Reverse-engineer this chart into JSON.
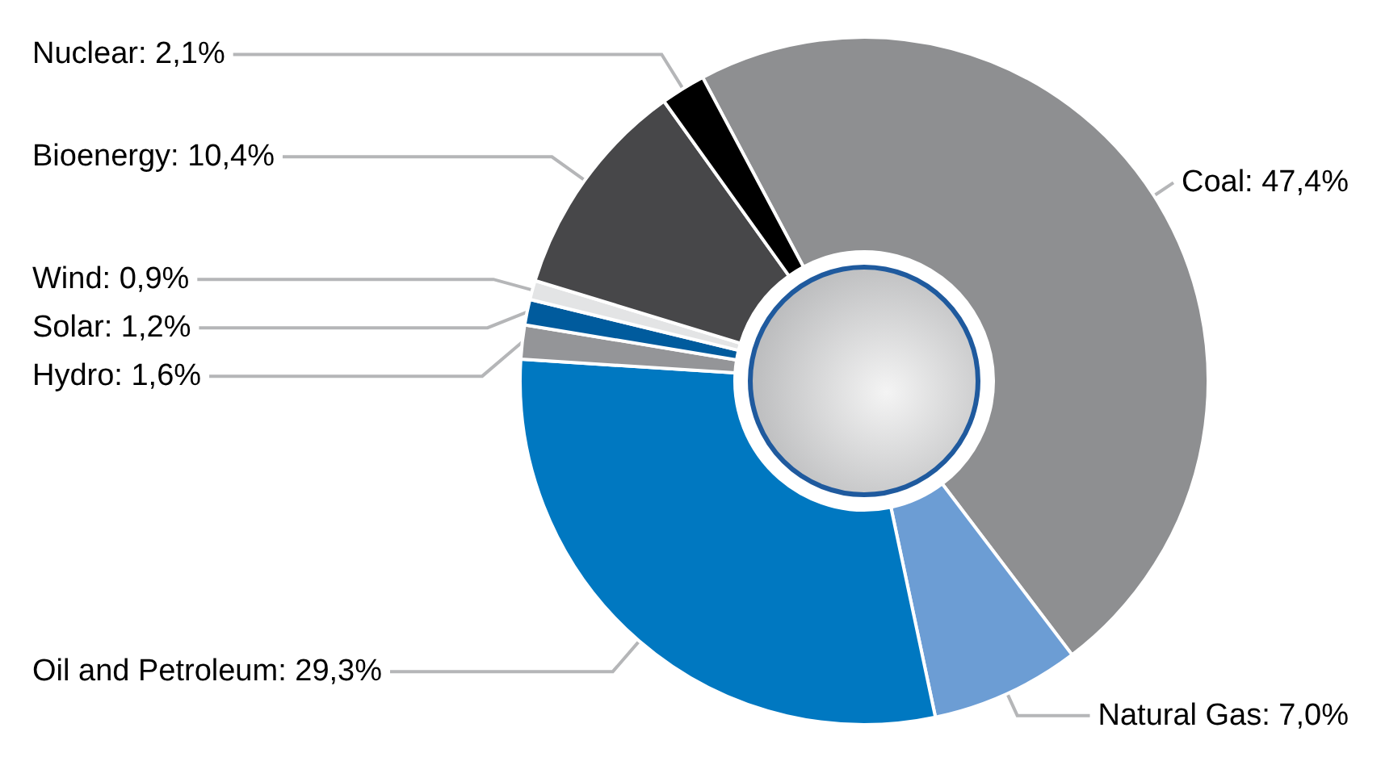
{
  "chart_data": {
    "type": "donut",
    "categories": [
      "Coal",
      "Natural Gas",
      "Oil and Petroleum",
      "Hydro",
      "Solar",
      "Wind",
      "Bioenergy",
      "Nuclear"
    ],
    "values": [
      47.4,
      7.0,
      29.3,
      1.6,
      1.2,
      0.9,
      10.4,
      2.1
    ],
    "value_labels": [
      "47,4%",
      "7,0%",
      "29,3%",
      "1,6%",
      "1,2%",
      "0,9%",
      "10,4%",
      "2,1%"
    ],
    "colors": [
      "#8e8f91",
      "#6c9dd4",
      "#0078c1",
      "#949598",
      "#005b9d",
      "#e3e4e5",
      "#474749",
      "#000000"
    ]
  }
}
